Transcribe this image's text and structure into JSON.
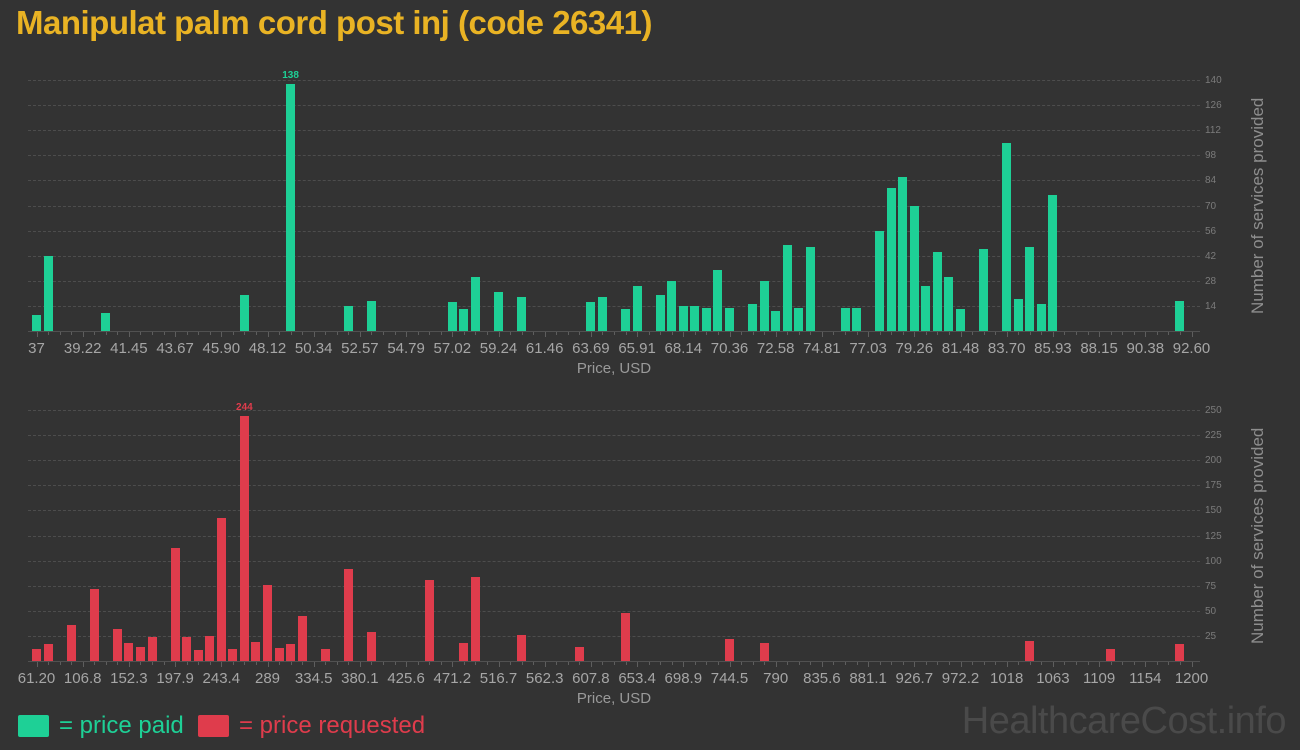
{
  "title": "Manipulat palm cord post inj (code 26341)",
  "watermark": "HealthcareCost.info",
  "legend": {
    "paid_label": "= price paid",
    "requested_label": "= price requested"
  },
  "colors": {
    "background": "#333333",
    "title": "#e9b324",
    "paid": "#1ed096",
    "requested": "#df3c4c",
    "grid": "#4d4d4d",
    "xtick_text": "#a6a6a6",
    "ytick_text": "#7b7b7b",
    "axis_title_text": "#8e8e8e",
    "watermark": "#4a4a4a"
  },
  "chart_data": [
    {
      "type": "bar",
      "series_name": "price paid",
      "color_key": "paid",
      "xlabel": "Price, USD",
      "ylabel": "Number of services provided",
      "xlim": [
        37,
        92.6
      ],
      "ylim": [
        0,
        150
      ],
      "grid": true,
      "legend_position": "bottom-left",
      "yaxis_position": "right",
      "bin_width_usd": 0.556,
      "x_tick_labels": [
        "37",
        "39.22",
        "41.45",
        "43.67",
        "45.90",
        "48.12",
        "50.34",
        "52.57",
        "54.79",
        "57.02",
        "59.24",
        "61.46",
        "63.69",
        "65.91",
        "68.14",
        "70.36",
        "72.58",
        "74.81",
        "77.03",
        "79.26",
        "81.48",
        "83.70",
        "85.93",
        "88.15",
        "90.38",
        "92.60"
      ],
      "y_ticks": [
        14,
        28,
        42,
        56,
        70,
        84,
        98,
        112,
        126,
        140
      ],
      "points_format": "[bin_index, price_usd, services_count]",
      "points": [
        [
          0,
          37.0,
          9
        ],
        [
          1,
          37.56,
          42
        ],
        [
          6,
          40.34,
          10
        ],
        [
          18,
          47.01,
          20
        ],
        [
          22,
          49.23,
          138
        ],
        [
          27,
          52.01,
          14
        ],
        [
          29,
          53.12,
          17
        ],
        [
          36,
          57.02,
          16
        ],
        [
          37,
          57.57,
          12
        ],
        [
          38,
          58.13,
          30
        ],
        [
          40,
          59.24,
          22
        ],
        [
          42,
          60.35,
          19
        ],
        [
          48,
          63.69,
          16
        ],
        [
          49,
          64.24,
          19
        ],
        [
          51,
          65.36,
          12
        ],
        [
          52,
          65.91,
          25
        ],
        [
          54,
          67.02,
          20
        ],
        [
          55,
          67.58,
          28
        ],
        [
          56,
          68.14,
          14
        ],
        [
          57,
          68.69,
          14
        ],
        [
          58,
          69.25,
          13
        ],
        [
          59,
          69.8,
          34
        ],
        [
          60,
          70.36,
          13
        ],
        [
          62,
          71.47,
          15
        ],
        [
          63,
          72.03,
          28
        ],
        [
          64,
          72.58,
          11
        ],
        [
          65,
          73.14,
          48
        ],
        [
          66,
          73.7,
          13
        ],
        [
          67,
          74.25,
          47
        ],
        [
          70,
          75.92,
          13
        ],
        [
          71,
          76.47,
          13
        ],
        [
          73,
          77.59,
          56
        ],
        [
          74,
          78.14,
          80
        ],
        [
          75,
          78.7,
          86
        ],
        [
          76,
          79.26,
          70
        ],
        [
          77,
          79.81,
          25
        ],
        [
          78,
          80.37,
          44
        ],
        [
          79,
          80.92,
          30
        ],
        [
          80,
          81.48,
          12
        ],
        [
          82,
          82.59,
          46
        ],
        [
          84,
          83.7,
          105
        ],
        [
          85,
          84.26,
          18
        ],
        [
          86,
          84.81,
          47
        ],
        [
          87,
          85.37,
          15
        ],
        [
          88,
          85.93,
          76
        ],
        [
          99,
          92.04,
          17
        ]
      ],
      "peak_label": {
        "bin": 22,
        "text": "138"
      }
    },
    {
      "type": "bar",
      "series_name": "price requested",
      "color_key": "requested",
      "xlabel": "Price, USD",
      "ylabel": "Number of services provided",
      "xlim": [
        61.2,
        1200
      ],
      "ylim": [
        0,
        250
      ],
      "grid": true,
      "legend_position": "bottom-left",
      "yaxis_position": "right",
      "bin_width_usd": 11.388,
      "x_tick_labels": [
        "61.20",
        "106.8",
        "152.3",
        "197.9",
        "243.4",
        "289",
        "334.5",
        "380.1",
        "425.6",
        "471.2",
        "516.7",
        "562.3",
        "607.8",
        "653.4",
        "698.9",
        "744.5",
        "790",
        "835.6",
        "881.1",
        "926.7",
        "972.2",
        "1018",
        "1063",
        "1109",
        "1154",
        "1200"
      ],
      "y_ticks": [
        25,
        50,
        75,
        100,
        125,
        150,
        175,
        200,
        225,
        250
      ],
      "points_format": "[bin_index, price_usd, services_count]",
      "points": [
        [
          0,
          61.2,
          12
        ],
        [
          1,
          72.59,
          17
        ],
        [
          3,
          95.36,
          36
        ],
        [
          5,
          118.14,
          72
        ],
        [
          7,
          140.92,
          32
        ],
        [
          8,
          152.3,
          18
        ],
        [
          9,
          163.69,
          14
        ],
        [
          10,
          175.08,
          24
        ],
        [
          12,
          197.86,
          113
        ],
        [
          13,
          209.24,
          24
        ],
        [
          14,
          220.63,
          11
        ],
        [
          15,
          232.02,
          25
        ],
        [
          16,
          243.41,
          142
        ],
        [
          17,
          254.8,
          12
        ],
        [
          18,
          266.18,
          244
        ],
        [
          19,
          277.57,
          19
        ],
        [
          20,
          288.96,
          76
        ],
        [
          21,
          300.35,
          13
        ],
        [
          22,
          311.74,
          17
        ],
        [
          23,
          323.12,
          45
        ],
        [
          25,
          345.9,
          12
        ],
        [
          27,
          368.68,
          92
        ],
        [
          29,
          391.45,
          29
        ],
        [
          34,
          448.39,
          81
        ],
        [
          37,
          482.56,
          18
        ],
        [
          38,
          493.94,
          84
        ],
        [
          42,
          539.5,
          26
        ],
        [
          47,
          596.44,
          14
        ],
        [
          51,
          641.99,
          48
        ],
        [
          60,
          744.48,
          22
        ],
        [
          63,
          778.64,
          18
        ],
        [
          86,
          1040.57,
          20
        ],
        [
          93,
          1120.28,
          12
        ],
        [
          99,
          1188.61,
          17
        ]
      ],
      "peak_label": {
        "bin": 18,
        "text": "244"
      }
    }
  ]
}
